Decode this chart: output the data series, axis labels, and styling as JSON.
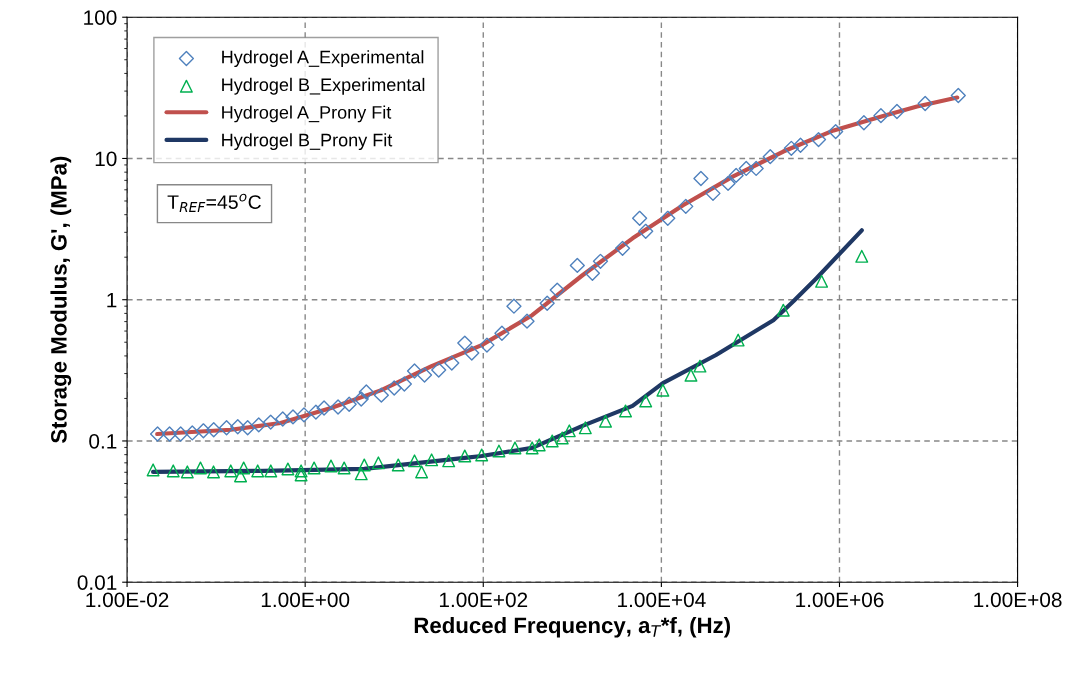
{
  "chart_data": {
    "type": "scatter",
    "xlabel": "Reduced Frequency, a$_{T}$*f, (Hz)",
    "ylabel": "Storage Modulus, G', (MPa)",
    "annotations": [
      "T$_{REF}$=45$^{o}$C"
    ],
    "log": "xy",
    "grid": true,
    "legend": "top left",
    "xlim": [
      0.01,
      100000000
    ],
    "ylim": [
      0.01,
      100
    ],
    "xticks": [
      {
        "value": 0.01,
        "label": "1.00E-02"
      },
      {
        "value": 1,
        "label": "1.00E+00"
      },
      {
        "value": 100,
        "label": "1.00E+02"
      },
      {
        "value": 10000,
        "label": "1.00E+04"
      },
      {
        "value": 1000000,
        "label": "1.00E+06"
      },
      {
        "value": 100000000,
        "label": "1.00E+08"
      }
    ],
    "yticks": [
      0.01,
      0.1,
      1,
      10,
      100
    ],
    "series": [
      {
        "name": "Hydrogel A_Experimental",
        "marker": "diamond",
        "color": "#4f81bd",
        "x": [
          0.022,
          0.03,
          0.04,
          0.054,
          0.072,
          0.094,
          0.131,
          0.175,
          0.226,
          0.301,
          0.41,
          0.56,
          0.73,
          0.97,
          1.32,
          1.63,
          2.34,
          3.12,
          4.26,
          4.86,
          7.17,
          10.0,
          13.0,
          16.9,
          21.9,
          31.6,
          44.3,
          62.0,
          74.3,
          110,
          162,
          221,
          310,
          522,
          677,
          1138,
          1682,
          2070,
          3665,
          5700,
          6670,
          11800,
          18800,
          27800,
          38000,
          56100,
          69100,
          89700,
          116000,
          167000,
          288000,
          365000,
          582000,
          906000,
          1880000,
          2920000,
          4420000,
          9170000,
          21600000
        ],
        "values": [
          0.112,
          0.112,
          0.112,
          0.114,
          0.118,
          0.12,
          0.124,
          0.126,
          0.124,
          0.13,
          0.136,
          0.143,
          0.148,
          0.153,
          0.16,
          0.171,
          0.174,
          0.182,
          0.198,
          0.222,
          0.211,
          0.237,
          0.253,
          0.313,
          0.293,
          0.318,
          0.356,
          0.493,
          0.419,
          0.477,
          0.579,
          0.9,
          0.705,
          0.944,
          1.17,
          1.75,
          1.54,
          1.87,
          2.31,
          3.77,
          3.05,
          3.77,
          4.58,
          7.22,
          5.66,
          6.66,
          7.59,
          8.5,
          8.5,
          10.3,
          11.8,
          12.4,
          13.6,
          15.5,
          17.9,
          20.1,
          21.5,
          24.5,
          27.9
        ]
      },
      {
        "name": "Hydrogel B_Experimental",
        "marker": "triangle",
        "color": "#00b050",
        "x": [
          0.0196,
          0.033,
          0.0475,
          0.0667,
          0.0935,
          0.146,
          0.188,
          0.204,
          0.293,
          0.411,
          0.64,
          0.9,
          0.9,
          1.26,
          1.95,
          2.74,
          4.26,
          4.61,
          6.64,
          11.1,
          16.9,
          20.3,
          26.3,
          40.9,
          62,
          96,
          150,
          227,
          354,
          425,
          595,
          771,
          925,
          1400,
          2360,
          3960,
          6670,
          10400,
          21500,
          27100,
          72800,
          234000,
          630000,
          1780000
        ],
        "values": [
          0.0624,
          0.0614,
          0.0604,
          0.0644,
          0.0604,
          0.0614,
          0.0566,
          0.0644,
          0.0614,
          0.0614,
          0.0634,
          0.0614,
          0.0575,
          0.0644,
          0.0665,
          0.0644,
          0.0585,
          0.0676,
          0.07,
          0.0676,
          0.0723,
          0.0604,
          0.0735,
          0.0723,
          0.0783,
          0.0796,
          0.0849,
          0.0893,
          0.0893,
          0.0938,
          0.1,
          0.105,
          0.118,
          0.124,
          0.138,
          0.163,
          0.192,
          0.229,
          0.292,
          0.339,
          0.518,
          0.843,
          1.35,
          2.03
        ]
      },
      {
        "name": "Hydrogel A_Prony Fit",
        "type": "line",
        "marker": "none",
        "line_style": "solid",
        "color": "#c0504d",
        "x": [
          0.0218,
          0.146,
          0.53,
          1.95,
          7.17,
          26.3,
          96,
          354,
          1300,
          4750,
          17500,
          64000,
          234000,
          861000,
          3160000,
          7430000,
          21000000
        ],
        "values": [
          0.112,
          0.12,
          0.134,
          0.171,
          0.229,
          0.339,
          0.477,
          0.777,
          1.49,
          2.72,
          4.66,
          7.47,
          11.2,
          15.8,
          20.1,
          23.3,
          27.0
        ]
      },
      {
        "name": "Hydrogel B_Prony Fit",
        "type": "line",
        "marker": "none",
        "line_style": "solid",
        "color": "#1f3864",
        "x": [
          0.0196,
          0.343,
          4.61,
          62,
          96,
          354,
          1300,
          4750,
          10400,
          41100,
          181000,
          304000,
          552000,
          1780000
        ],
        "values": [
          0.0604,
          0.0614,
          0.0634,
          0.0759,
          0.0783,
          0.0893,
          0.128,
          0.177,
          0.257,
          0.406,
          0.716,
          0.975,
          1.42,
          3.1
        ]
      }
    ]
  }
}
